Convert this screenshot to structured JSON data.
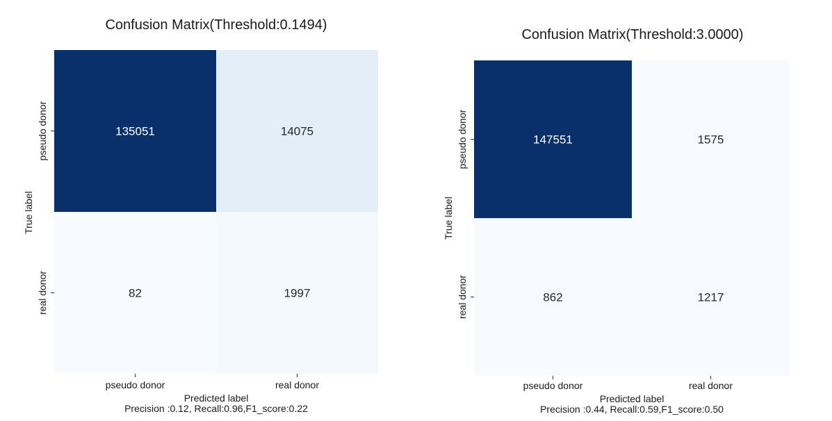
{
  "chart_data": [
    {
      "type": "heatmap",
      "title": "Confusion Matrix(Threshold:0.1494)",
      "xlabel": "Predicted label",
      "ylabel": "True label",
      "caption": "Precision :0.12, Recall:0.96,F1_score:0.22",
      "x_categories": [
        "pseudo donor",
        "real donor"
      ],
      "y_categories": [
        "pseudo donor",
        "real donor"
      ],
      "values": [
        [
          135051,
          14075
        ],
        [
          82,
          1997
        ]
      ],
      "colormap": "Blues",
      "colorbar": false
    },
    {
      "type": "heatmap",
      "title": "Confusion Matrix(Threshold:3.0000)",
      "xlabel": "Predicted label",
      "ylabel": "True label",
      "caption": "Precision :0.44, Recall:0.59,F1_score:0.50",
      "x_categories": [
        "pseudo donor",
        "real donor"
      ],
      "y_categories": [
        "pseudo donor",
        "real donor"
      ],
      "values": [
        [
          147551,
          1575
        ],
        [
          862,
          1217
        ]
      ],
      "colormap": "Blues",
      "colorbar": false
    }
  ],
  "colors": {
    "blues_low": "#f7fbff",
    "blues_high": "#08306b",
    "text_dark": "#262626",
    "text_light": "#ffffff"
  }
}
